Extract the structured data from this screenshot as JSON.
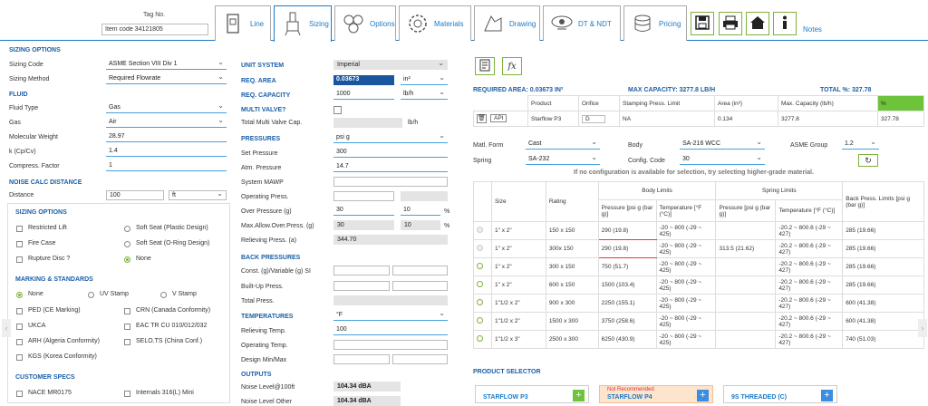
{
  "header": {
    "tag_label": "Tag No.",
    "tag_value": "Item code 34121805",
    "tabs": [
      "Line",
      "Sizing",
      "Options",
      "Materials",
      "Drawing",
      "DT & NDT",
      "Pricing"
    ],
    "notes": "Notes",
    "icons": [
      "save-icon",
      "print-icon",
      "home-icon",
      "info-icon"
    ]
  },
  "left": {
    "sizing_options_title": "SIZING OPTIONS",
    "sizing_code_label": "Sizing Code",
    "sizing_code": "ASME Section VIII Div 1",
    "sizing_method_label": "Sizing Method",
    "sizing_method": "Required Flowrate",
    "fluid_title": "FLUID",
    "fluid_type_label": "Fluid Type",
    "fluid_type": "Gas",
    "gas_label": "Gas",
    "gas": "Air",
    "mw_label": "Molecular Weight",
    "mw": "28.97",
    "k_label": "k (Cp/Cv)",
    "k": "1.4",
    "z_label": "Compress. Factor",
    "z": "1",
    "noise_title": "NOISE CALC DISTANCE",
    "distance_label": "Distance",
    "distance": "100",
    "distance_unit": "ft",
    "sizing_opts2_title": "SIZING OPTIONS",
    "restricted_lift": "Restricted Lift",
    "soft_seat_plastic": "Soft Seat (Plastic Design)",
    "fire_case": "Fire Case",
    "soft_seat_oring": "Soft Seat (O-Ring Design)",
    "rupture_disc": "Rupture Disc ?",
    "none": "None",
    "marking_title": "MARKING & STANDARDS",
    "m_none": "None",
    "uv_stamp": "UV Stamp",
    "v_stamp": "V Stamp",
    "ped": "PED (CE Marking)",
    "crn": "CRN (Canada Conformity)",
    "ukca": "UKCA",
    "eac": "EAC TR CU 010/012/032",
    "arh": "ARH (Algeria Conformity)",
    "selo": "SELO.TS (China Conf.)",
    "kgs": "KGS (Korea Conformity)",
    "customer_title": "CUSTOMER SPECS",
    "nace": "NACE MR0175",
    "internals": "Internals 316(L) Mini"
  },
  "middle": {
    "unit_system_label": "UNIT SYSTEM",
    "unit_system": "Imperial",
    "req_area_label": "REQ. AREA",
    "req_area": "0.03673",
    "req_area_unit": "in²",
    "req_cap_label": "REQ. CAPACITY",
    "req_cap": "1000",
    "req_cap_unit": "lb/h",
    "multi_valve_label": "MULTI VALVE?",
    "total_multi_label": "Total Multi Valve Cap.",
    "total_multi_unit": "lb/h",
    "pressures_label": "PRESSURES",
    "pressures_unit": "psi g",
    "set_pressure_label": "Set Pressure",
    "set_pressure": "300",
    "atm_label": "Atm. Pressure",
    "atm": "14.7",
    "mawp_label": "System MAWP",
    "op_press_label": "Operating Press.",
    "over_press_label": "Over Pressure (g)",
    "over_press": "30",
    "over_press_pct": "10",
    "pct": "%",
    "max_over_label": "Max.Allow.Over.Press. (g)",
    "max_over": "30",
    "max_over_pct": "10",
    "relieving_label": "Relieving Press. (a)",
    "relieving": "344.70",
    "back_title": "BACK PRESSURES",
    "const_label": "Const. (g)/Variable (g) SI",
    "built_label": "Built-Up Press.",
    "total_label": "Total Press.",
    "temps_label": "TEMPERATURES",
    "temps_unit": "°F",
    "rel_temp_label": "Relieving Temp.",
    "rel_temp": "100",
    "op_temp_label": "Operating Temp.",
    "design_label": "Design Min/Max",
    "outputs_title": "OUTPUTS",
    "noise100_label": "Noise Level@100ft",
    "noise100": "104.34 dBA",
    "noise_other_label": "Noise Level Other",
    "noise_other": "104.34 dBA"
  },
  "right": {
    "req_area_text": "REQUIRED AREA: 0.03673 IN²",
    "max_cap_text": "MAX CAPACITY: 3277.8 LB/H",
    "total_pct_text": "TOTAL %: 327.78",
    "sel_headers": [
      "Product",
      "Orifice",
      "Stamping Press. Limit",
      "Area (in²)",
      "Max. Capacity (lb/h)",
      "%"
    ],
    "sel_row": {
      "api": "API",
      "product": "Starflow P3",
      "orifice": "D",
      "stamping": "NA",
      "area": "0.134",
      "max_cap": "3277.8",
      "pct": "327.78"
    },
    "matl_label": "Matl. Form",
    "matl": "Cast",
    "body_label": "Body",
    "body": "SA-216 WCC",
    "asme_label": "ASME Group",
    "asme": "1.2",
    "spring_label": "Spring",
    "spring": "SA-232",
    "config_label": "Config. Code",
    "config": "30",
    "hint": "If no configuration is available for selection, try selecting higher-grade material.",
    "limits_headers": {
      "size": "Size",
      "rating": "Rating",
      "body": "Body Limits",
      "spring": "Spring Limits",
      "back": "Back Press. Limits [psi g (bar g)]",
      "pressure": "Pressure [psi g (bar g)]",
      "temperature": "Temperature [°F (°C)]",
      "spring_pressure": "Pressure [psi g (bar g)]",
      "spring_temperature": "Temperature [°F (°C)]"
    },
    "limits_rows": [
      {
        "size": "1\" x 2\"",
        "rating": "150 x 150",
        "bp": "290 (19.8)",
        "bt": "-20 ~ 800 (-29 ~ 425)",
        "sp": "",
        "st": "-20.2 ~ 800.6 (-29 ~ 427)",
        "back": "285 (19.66)"
      },
      {
        "size": "1\" x 2\"",
        "rating": "300x 150",
        "bp": "290 (19.8)",
        "bt": "-20 ~ 800 (-29 ~ 425)",
        "sp": "313.5 (21.62)",
        "st": "-20.2 ~ 800.6 (-29 ~ 427)",
        "back": "285 (19.66)"
      },
      {
        "size": "1\" x 2\"",
        "rating": "300 x 150",
        "bp": "750 (51.7)",
        "bt": "-20 ~ 800 (-29 ~ 425)",
        "sp": "",
        "st": "-20.2 ~ 800.6 (-29 ~ 427)",
        "back": "285 (19.66)"
      },
      {
        "size": "1\" x 2\"",
        "rating": "600 x 150",
        "bp": "1500 (103.4)",
        "bt": "-20 ~ 800 (-29 ~ 425)",
        "sp": "",
        "st": "-20.2 ~ 800.6 (-29 ~ 427)",
        "back": "285 (19.66)"
      },
      {
        "size": "1\"1/2 x 2\"",
        "rating": "900 x 300",
        "bp": "2250 (155.1)",
        "bt": "-20 ~ 800 (-29 ~ 425)",
        "sp": "",
        "st": "-20.2 ~ 800.6 (-29 ~ 427)",
        "back": "600 (41.38)"
      },
      {
        "size": "1\"1/2 x 2\"",
        "rating": "1500 x 300",
        "bp": "3750 (258.6)",
        "bt": "-20 ~ 800 (-29 ~ 425)",
        "sp": "",
        "st": "-20.2 ~ 800.6 (-29 ~ 427)",
        "back": "600 (41.38)"
      },
      {
        "size": "1\"1/2 x 3\"",
        "rating": "2500 x 300",
        "bp": "6250 (430.9)",
        "bt": "-20 ~ 800 (-29 ~ 425)",
        "sp": "",
        "st": "-20.2 ~ 800.6 (-29 ~ 427)",
        "back": "740 (51.03)"
      }
    ],
    "product_selector_title": "PRODUCT SELECTOR",
    "products": [
      {
        "name": "STARFLOW P3",
        "badge": ""
      },
      {
        "name": "STARFLOW P4",
        "badge": "Not Recommended"
      },
      {
        "name": "9S THREADED (C)",
        "badge": ""
      }
    ]
  },
  "colors": {
    "accent": "#1a7ac8",
    "green": "#7fb23a",
    "navy": "#1a56a0",
    "pct_green": "#6dc43a"
  }
}
